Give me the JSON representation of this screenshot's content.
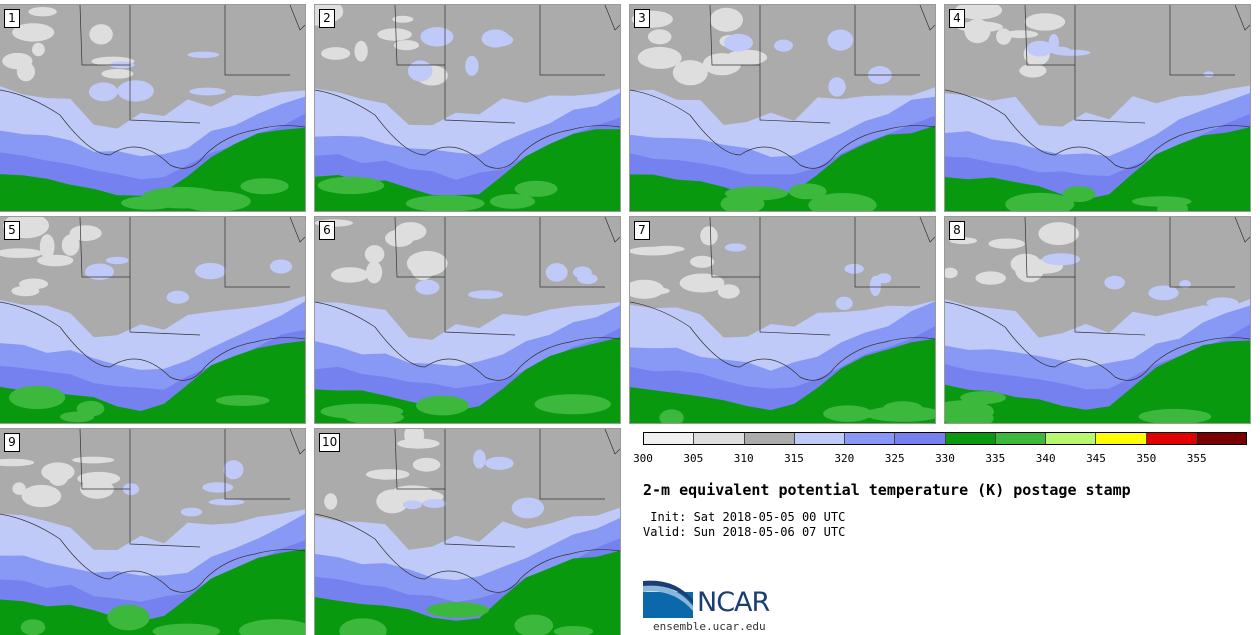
{
  "panels": [
    {
      "label": "1"
    },
    {
      "label": "2"
    },
    {
      "label": "3"
    },
    {
      "label": "4"
    },
    {
      "label": "5"
    },
    {
      "label": "6"
    },
    {
      "label": "7"
    },
    {
      "label": "8"
    },
    {
      "label": "9"
    },
    {
      "label": "10"
    }
  ],
  "colorbar": {
    "colors": [
      "#f0f0f0",
      "#dedede",
      "#ababab",
      "#c0caf8",
      "#8898f5",
      "#7481ef",
      "#08990f",
      "#3cb83c",
      "#b8f86c",
      "#fffe00",
      "#e10000",
      "#7a0000"
    ],
    "ticks": [
      "300",
      "305",
      "310",
      "315",
      "320",
      "325",
      "330",
      "335",
      "340",
      "345",
      "350",
      "355"
    ]
  },
  "title": "2-m equivalent potential temperature (K) postage stamp",
  "init": " Init: Sat 2018-05-05 00 UTC",
  "valid": "Valid: Sun 2018-05-06 07 UTC",
  "logo": {
    "text": "NCAR",
    "url": "ensemble.ucar.edu"
  }
}
